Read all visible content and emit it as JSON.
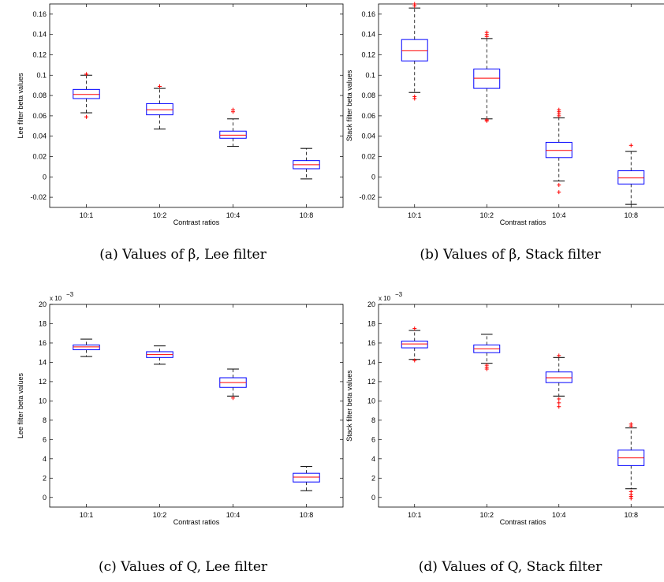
{
  "chart_data": [
    {
      "id": "a",
      "type": "box",
      "caption": "(a) Values of β, Lee filter",
      "xlabel": "Contrast ratios",
      "ylabel": "Lee filter beta values",
      "categories": [
        "10:1",
        "10:2",
        "10:4",
        "10:8"
      ],
      "ylim": [
        -0.03,
        0.17
      ],
      "yticks": [
        -0.02,
        0,
        0.02,
        0.04,
        0.06,
        0.08,
        0.1,
        0.12,
        0.14,
        0.16
      ],
      "ytick_labels": [
        "-0.02",
        "0",
        "0.02",
        "0.04",
        "0.06",
        "0.08",
        "0.1",
        "0.12",
        "0.14",
        "0.16"
      ],
      "multiplier": "",
      "boxes": [
        {
          "low": 0.063,
          "q1": 0.077,
          "median": 0.081,
          "q3": 0.086,
          "high": 0.1,
          "outliers": [
            0.101,
            0.059
          ]
        },
        {
          "low": 0.047,
          "q1": 0.061,
          "median": 0.066,
          "q3": 0.072,
          "high": 0.087,
          "outliers": [
            0.089
          ]
        },
        {
          "low": 0.03,
          "q1": 0.038,
          "median": 0.041,
          "q3": 0.045,
          "high": 0.057,
          "outliers": [
            0.064,
            0.066
          ]
        },
        {
          "low": -0.002,
          "q1": 0.008,
          "median": 0.012,
          "q3": 0.016,
          "high": 0.028,
          "outliers": []
        }
      ]
    },
    {
      "id": "b",
      "type": "box",
      "caption": "(b) Values of β, Stack filter",
      "xlabel": "Contrast ratios",
      "ylabel": "Stack filter beta values",
      "categories": [
        "10:1",
        "10:2",
        "10:4",
        "10:8"
      ],
      "ylim": [
        -0.03,
        0.17
      ],
      "yticks": [
        -0.02,
        0,
        0.02,
        0.04,
        0.06,
        0.08,
        0.1,
        0.12,
        0.14,
        0.16
      ],
      "ytick_labels": [
        "-0.02",
        "0",
        "0.02",
        "0.04",
        "0.06",
        "0.08",
        "0.1",
        "0.12",
        "0.14",
        "0.16"
      ],
      "multiplier": "",
      "boxes": [
        {
          "low": 0.083,
          "q1": 0.114,
          "median": 0.124,
          "q3": 0.135,
          "high": 0.166,
          "outliers": [
            0.168,
            0.17,
            0.172,
            0.174,
            0.176,
            0.079,
            0.077
          ]
        },
        {
          "low": 0.057,
          "q1": 0.087,
          "median": 0.097,
          "q3": 0.106,
          "high": 0.136,
          "outliers": [
            0.138,
            0.14,
            0.142,
            0.056,
            0.055
          ]
        },
        {
          "low": -0.004,
          "q1": 0.019,
          "median": 0.026,
          "q3": 0.034,
          "high": 0.058,
          "outliers": [
            0.06,
            0.062,
            0.064,
            0.066,
            -0.008,
            -0.015
          ]
        },
        {
          "low": -0.027,
          "q1": -0.007,
          "median": -0.001,
          "q3": 0.006,
          "high": 0.025,
          "outliers": [
            0.031
          ]
        }
      ]
    },
    {
      "id": "c",
      "type": "box",
      "caption": "(c) Values of Q, Lee filter",
      "xlabel": "Contrast ratios",
      "ylabel": "Lee filter beta values",
      "categories": [
        "10:1",
        "10:2",
        "10:4",
        "10:8"
      ],
      "ylim": [
        -1,
        20
      ],
      "yticks": [
        0,
        2,
        4,
        6,
        8,
        10,
        12,
        14,
        16,
        18,
        20
      ],
      "ytick_labels": [
        "0",
        "2",
        "4",
        "6",
        "8",
        "10",
        "12",
        "14",
        "16",
        "18",
        "20"
      ],
      "multiplier": "x 10",
      "multiplier_exp": "−3",
      "boxes": [
        {
          "low": 14.6,
          "q1": 15.3,
          "median": 15.6,
          "q3": 15.8,
          "high": 16.4,
          "outliers": []
        },
        {
          "low": 13.8,
          "q1": 14.5,
          "median": 14.8,
          "q3": 15.1,
          "high": 15.7,
          "outliers": []
        },
        {
          "low": 10.5,
          "q1": 11.4,
          "median": 11.9,
          "q3": 12.4,
          "high": 13.3,
          "outliers": [
            10.3
          ]
        },
        {
          "low": 0.7,
          "q1": 1.6,
          "median": 2.1,
          "q3": 2.5,
          "high": 3.2,
          "outliers": []
        }
      ]
    },
    {
      "id": "d",
      "type": "box",
      "caption": "(d) Values of Q, Stack filter",
      "xlabel": "Contrast ratios",
      "ylabel": "Stack filter beta values",
      "categories": [
        "10:1",
        "10:2",
        "10:4",
        "10:8"
      ],
      "ylim": [
        -1,
        20
      ],
      "yticks": [
        0,
        2,
        4,
        6,
        8,
        10,
        12,
        14,
        16,
        18,
        20
      ],
      "ytick_labels": [
        "0",
        "2",
        "4",
        "6",
        "8",
        "10",
        "12",
        "14",
        "16",
        "18",
        "20"
      ],
      "multiplier": "x 10",
      "multiplier_exp": "−3",
      "boxes": [
        {
          "low": 14.3,
          "q1": 15.5,
          "median": 15.9,
          "q3": 16.2,
          "high": 17.3,
          "outliers": [
            17.5,
            14.2
          ]
        },
        {
          "low": 13.9,
          "q1": 15.0,
          "median": 15.4,
          "q3": 15.8,
          "high": 16.9,
          "outliers": [
            13.7,
            13.5,
            13.3
          ]
        },
        {
          "low": 10.5,
          "q1": 11.9,
          "median": 12.4,
          "q3": 13.0,
          "high": 14.5,
          "outliers": [
            14.7,
            10.2,
            9.8,
            9.4
          ]
        },
        {
          "low": 0.9,
          "q1": 3.3,
          "median": 4.1,
          "q3": 4.9,
          "high": 7.2,
          "outliers": [
            7.4,
            7.6,
            0.6,
            0.3,
            0.1,
            -0.1
          ]
        }
      ]
    }
  ]
}
